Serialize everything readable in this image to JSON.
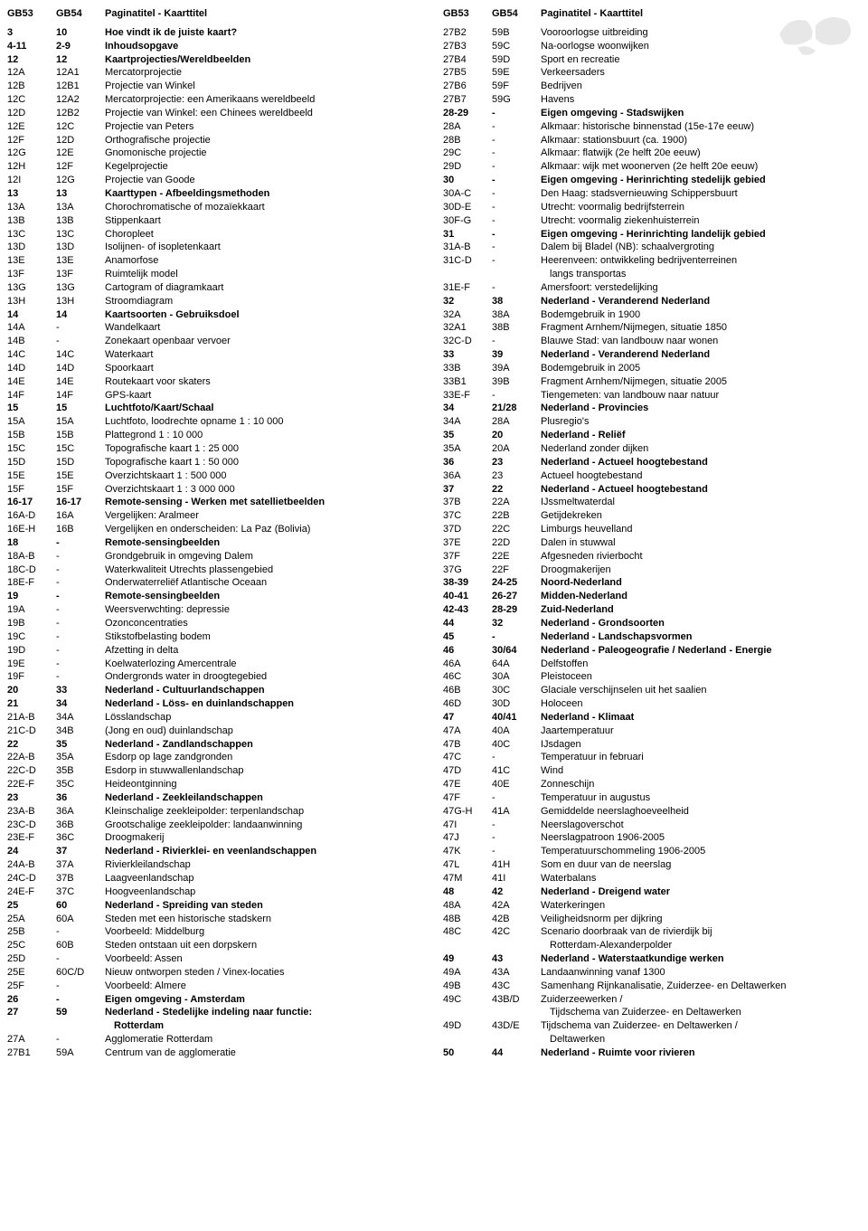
{
  "headers": {
    "c1": "GB53",
    "c2": "GB54",
    "c3": "Paginatitel - Kaarttitel"
  },
  "left": [
    {
      "c1": "3",
      "c2": "10",
      "c3": "Hoe vindt ik de juiste kaart?",
      "bold": true
    },
    {
      "c1": "4-11",
      "c2": "2-9",
      "c3": "Inhoudsopgave",
      "bold": true
    },
    {
      "c1": "12",
      "c2": "12",
      "c3": "Kaartprojecties/Wereldbeelden",
      "bold": true
    },
    {
      "c1": "12A",
      "c2": "12A1",
      "c3": "Mercatorprojectie"
    },
    {
      "c1": "12B",
      "c2": "12B1",
      "c3": "Projectie van Winkel"
    },
    {
      "c1": "12C",
      "c2": "12A2",
      "c3": "Mercatorprojectie: een Amerikaans wereldbeeld"
    },
    {
      "c1": "12D",
      "c2": "12B2",
      "c3": "Projectie van Winkel: een Chinees wereldbeeld"
    },
    {
      "c1": "12E",
      "c2": "12C",
      "c3": "Projectie van Peters"
    },
    {
      "c1": "12F",
      "c2": "12D",
      "c3": "Orthografische projectie"
    },
    {
      "c1": "12G",
      "c2": "12E",
      "c3": "Gnomonische projectie"
    },
    {
      "c1": "12H",
      "c2": "12F",
      "c3": "Kegelprojectie"
    },
    {
      "c1": "12I",
      "c2": "12G",
      "c3": "Projectie van Goode"
    },
    {
      "c1": "13",
      "c2": "13",
      "c3": "Kaarttypen - Afbeeldingsmethoden",
      "bold": true
    },
    {
      "c1": "13A",
      "c2": "13A",
      "c3": "Chorochromatische of mozaïekkaart"
    },
    {
      "c1": "13B",
      "c2": "13B",
      "c3": "Stippenkaart"
    },
    {
      "c1": "13C",
      "c2": "13C",
      "c3": "Choropleet"
    },
    {
      "c1": "13D",
      "c2": "13D",
      "c3": "Isolijnen- of isopletenkaart"
    },
    {
      "c1": "13E",
      "c2": "13E",
      "c3": "Anamorfose"
    },
    {
      "c1": "13F",
      "c2": "13F",
      "c3": "Ruimtelijk model"
    },
    {
      "c1": "13G",
      "c2": "13G",
      "c3": "Cartogram of diagramkaart"
    },
    {
      "c1": "13H",
      "c2": "13H",
      "c3": "Stroomdiagram"
    },
    {
      "c1": "14",
      "c2": "14",
      "c3": "Kaartsoorten - Gebruiksdoel",
      "bold": true
    },
    {
      "c1": "14A",
      "c2": "-",
      "c3": "Wandelkaart"
    },
    {
      "c1": "14B",
      "c2": "-",
      "c3": "Zonekaart openbaar vervoer"
    },
    {
      "c1": "14C",
      "c2": "14C",
      "c3": "Waterkaart"
    },
    {
      "c1": "14D",
      "c2": "14D",
      "c3": "Spoorkaart"
    },
    {
      "c1": "14E",
      "c2": "14E",
      "c3": "Routekaart voor skaters"
    },
    {
      "c1": "14F",
      "c2": "14F",
      "c3": "GPS-kaart"
    },
    {
      "c1": "15",
      "c2": "15",
      "c3": "Luchtfoto/Kaart/Schaal",
      "bold": true
    },
    {
      "c1": "15A",
      "c2": "15A",
      "c3": "Luchtfoto, loodrechte opname 1 : 10 000"
    },
    {
      "c1": "15B",
      "c2": "15B",
      "c3": "Plattegrond 1 : 10 000"
    },
    {
      "c1": "15C",
      "c2": "15C",
      "c3": "Topografische kaart 1 : 25 000"
    },
    {
      "c1": "15D",
      "c2": "15D",
      "c3": "Topografische kaart 1 : 50 000"
    },
    {
      "c1": "15E",
      "c2": "15E",
      "c3": "Overzichtskaart 1 : 500 000"
    },
    {
      "c1": "15F",
      "c2": "15F",
      "c3": "Overzichtskaart 1 : 3 000 000"
    },
    {
      "c1": "16-17",
      "c2": "16-17",
      "c3": "Remote-sensing - Werken met satellietbeelden",
      "bold": true
    },
    {
      "c1": "16A-D",
      "c2": "16A",
      "c3": "Vergelijken: Aralmeer"
    },
    {
      "c1": "16E-H",
      "c2": "16B",
      "c3": "Vergelijken en onderscheiden: La Paz (Bolivia)"
    },
    {
      "c1": "18",
      "c2": "-",
      "c3": "Remote-sensingbeelden",
      "bold": true
    },
    {
      "c1": "18A-B",
      "c2": "-",
      "c3": "Grondgebruik in omgeving Dalem"
    },
    {
      "c1": "18C-D",
      "c2": "-",
      "c3": "Waterkwaliteit Utrechts plassengebied"
    },
    {
      "c1": "18E-F",
      "c2": "-",
      "c3": "Onderwaterreliëf Atlantische Oceaan"
    },
    {
      "c1": "19",
      "c2": "-",
      "c3": "Remote-sensingbeelden",
      "bold": true
    },
    {
      "c1": "19A",
      "c2": "-",
      "c3": "Weersverwchting: depressie"
    },
    {
      "c1": "19B",
      "c2": "-",
      "c3": "Ozonconcentraties"
    },
    {
      "c1": "19C",
      "c2": "-",
      "c3": "Stikstofbelasting bodem"
    },
    {
      "c1": "19D",
      "c2": "-",
      "c3": "Afzetting in delta"
    },
    {
      "c1": "19E",
      "c2": "-",
      "c3": "Koelwaterlozing Amercentrale"
    },
    {
      "c1": "19F",
      "c2": "-",
      "c3": "Ondergronds water in droogtegebied"
    },
    {
      "c1": "20",
      "c2": "33",
      "c3": "Nederland - Cultuurlandschappen",
      "bold": true
    },
    {
      "c1": "21",
      "c2": "34",
      "c3": "Nederland - Löss- en duinlandschappen",
      "bold": true
    },
    {
      "c1": "21A-B",
      "c2": "34A",
      "c3": "Lösslandschap"
    },
    {
      "c1": "21C-D",
      "c2": "34B",
      "c3": "(Jong en oud) duinlandschap"
    },
    {
      "c1": "22",
      "c2": "35",
      "c3": "Nederland - Zandlandschappen",
      "bold": true
    },
    {
      "c1": "22A-B",
      "c2": "35A",
      "c3": "Esdorp op lage zandgronden"
    },
    {
      "c1": "22C-D",
      "c2": "35B",
      "c3": "Esdorp in stuwwallenlandschap"
    },
    {
      "c1": "22E-F",
      "c2": "35C",
      "c3": "Heideontginning"
    },
    {
      "c1": "23",
      "c2": "36",
      "c3": "Nederland - Zeekleilandschappen",
      "bold": true
    },
    {
      "c1": "23A-B",
      "c2": "36A",
      "c3": "Kleinschalige zeekleipolder: terpenlandschap"
    },
    {
      "c1": "23C-D",
      "c2": "36B",
      "c3": "Grootschalige zeekleipolder: landaanwinning"
    },
    {
      "c1": "23E-F",
      "c2": "36C",
      "c3": "Droogmakerij"
    },
    {
      "c1": "24",
      "c2": "37",
      "c3": "Nederland - Rivierklei- en veenlandschappen",
      "bold": true
    },
    {
      "c1": "24A-B",
      "c2": "37A",
      "c3": "Rivierkleilandschap"
    },
    {
      "c1": "24C-D",
      "c2": "37B",
      "c3": "Laagveenlandschap"
    },
    {
      "c1": "24E-F",
      "c2": "37C",
      "c3": "Hoogveenlandschap"
    },
    {
      "c1": "25",
      "c2": "60",
      "c3": "Nederland - Spreiding van steden",
      "bold": true
    },
    {
      "c1": "25A",
      "c2": "60A",
      "c3": "Steden met een historische stadskern"
    },
    {
      "c1": "25B",
      "c2": "-",
      "c3": "Voorbeeld: Middelburg"
    },
    {
      "c1": "25C",
      "c2": "60B",
      "c3": "Steden ontstaan uit een dorpskern"
    },
    {
      "c1": "25D",
      "c2": "-",
      "c3": "Voorbeeld: Assen"
    },
    {
      "c1": "25E",
      "c2": "60C/D",
      "c3": "Nieuw ontworpen steden / Vinex-locaties"
    },
    {
      "c1": "25F",
      "c2": "-",
      "c3": "Voorbeeld: Almere"
    },
    {
      "c1": "26",
      "c2": "-",
      "c3": "Eigen omgeving - Amsterdam",
      "bold": true
    },
    {
      "c1": "27",
      "c2": "59",
      "c3": "Nederland - Stedelijke indeling naar functie:",
      "bold": true
    },
    {
      "c1": "",
      "c2": "",
      "c3": "Rotterdam",
      "bold": true,
      "indent": true
    },
    {
      "c1": "27A",
      "c2": "-",
      "c3": "Agglomeratie Rotterdam"
    },
    {
      "c1": "27B1",
      "c2": "59A",
      "c3": "Centrum van de agglomeratie"
    }
  ],
  "right": [
    {
      "c1": "27B2",
      "c2": "59B",
      "c3": "Vooroorlogse uitbreiding"
    },
    {
      "c1": "27B3",
      "c2": "59C",
      "c3": "Na-oorlogse woonwijken"
    },
    {
      "c1": "27B4",
      "c2": "59D",
      "c3": "Sport en recreatie"
    },
    {
      "c1": "27B5",
      "c2": "59E",
      "c3": "Verkeersaders"
    },
    {
      "c1": "27B6",
      "c2": "59F",
      "c3": "Bedrijven"
    },
    {
      "c1": "27B7",
      "c2": "59G",
      "c3": "Havens"
    },
    {
      "c1": "28-29",
      "c2": "-",
      "c3": "Eigen omgeving - Stadswijken",
      "bold": true
    },
    {
      "c1": "28A",
      "c2": "-",
      "c3": "Alkmaar: historische binnenstad (15e-17e eeuw)"
    },
    {
      "c1": "28B",
      "c2": "-",
      "c3": "Alkmaar: stationsbuurt (ca. 1900)"
    },
    {
      "c1": "29C",
      "c2": "-",
      "c3": "Alkmaar: flatwijk (2e helft 20e eeuw)"
    },
    {
      "c1": "29D",
      "c2": "-",
      "c3": "Alkmaar: wijk met woonerven (2e helft 20e eeuw)"
    },
    {
      "c1": "30",
      "c2": "-",
      "c3": "Eigen omgeving - Herinrichting stedelijk gebied",
      "bold": true
    },
    {
      "c1": "30A-C",
      "c2": "-",
      "c3": "Den Haag: stadsvernieuwing Schippersbuurt"
    },
    {
      "c1": "30D-E",
      "c2": "-",
      "c3": "Utrecht: voormalig bedrijfsterrein"
    },
    {
      "c1": "30F-G",
      "c2": "-",
      "c3": "Utrecht: voormalig ziekenhuisterrein"
    },
    {
      "c1": "31",
      "c2": "-",
      "c3": "Eigen omgeving - Herinrichting landelijk gebied",
      "bold": true
    },
    {
      "c1": "31A-B",
      "c2": "-",
      "c3": "Dalem bij Bladel (NB): schaalvergroting"
    },
    {
      "c1": "31C-D",
      "c2": "-",
      "c3": "Heerenveen: ontwikkeling bedrijventerreinen"
    },
    {
      "c1": "",
      "c2": "",
      "c3": "langs transportas",
      "indent": true
    },
    {
      "c1": "31E-F",
      "c2": "-",
      "c3": "Amersfoort: verstedelijking"
    },
    {
      "c1": "32",
      "c2": "38",
      "c3": "Nederland - Veranderend Nederland",
      "bold": true
    },
    {
      "c1": "32A",
      "c2": "38A",
      "c3": "Bodemgebruik in 1900"
    },
    {
      "c1": "32A1",
      "c2": "38B",
      "c3": "Fragment Arnhem/Nijmegen, situatie 1850"
    },
    {
      "c1": "32C-D",
      "c2": "-",
      "c3": "Blauwe Stad: van landbouw naar wonen"
    },
    {
      "c1": "33",
      "c2": "39",
      "c3": "Nederland - Veranderend Nederland",
      "bold": true
    },
    {
      "c1": "33B",
      "c2": "39A",
      "c3": "Bodemgebruik in 2005"
    },
    {
      "c1": "33B1",
      "c2": "39B",
      "c3": "Fragment Arnhem/Nijmegen, situatie 2005"
    },
    {
      "c1": "33E-F",
      "c2": "-",
      "c3": "Tiengemeten: van landbouw naar natuur"
    },
    {
      "c1": "34",
      "c2": "21/28",
      "c3": "Nederland - Provincies",
      "bold": true
    },
    {
      "c1": "34A",
      "c2": "28A",
      "c3": "Plusregio's"
    },
    {
      "c1": "35",
      "c2": "20",
      "c3": "Nederland - Reliëf",
      "bold": true
    },
    {
      "c1": "35A",
      "c2": "20A",
      "c3": "Nederland zonder dijken"
    },
    {
      "c1": "36",
      "c2": "23",
      "c3": "Nederland - Actueel hoogtebestand",
      "bold": true
    },
    {
      "c1": "36A",
      "c2": "23",
      "c3": "Actueel hoogtebestand"
    },
    {
      "c1": "37",
      "c2": "22",
      "c3": "Nederland - Actueel hoogtebestand",
      "bold": true
    },
    {
      "c1": "37B",
      "c2": "22A",
      "c3": "IJssmeltwaterdal"
    },
    {
      "c1": "37C",
      "c2": "22B",
      "c3": "Getijdekreken"
    },
    {
      "c1": "37D",
      "c2": "22C",
      "c3": "Limburgs heuvelland"
    },
    {
      "c1": "37E",
      "c2": "22D",
      "c3": "Dalen in stuwwal"
    },
    {
      "c1": "37F",
      "c2": "22E",
      "c3": "Afgesneden rivierbocht"
    },
    {
      "c1": "37G",
      "c2": "22F",
      "c3": "Droogmakerijen"
    },
    {
      "c1": "38-39",
      "c2": "24-25",
      "c3": "Noord-Nederland",
      "bold": true
    },
    {
      "c1": "40-41",
      "c2": "26-27",
      "c3": "Midden-Nederland",
      "bold": true
    },
    {
      "c1": "42-43",
      "c2": "28-29",
      "c3": "Zuid-Nederland",
      "bold": true
    },
    {
      "c1": "44",
      "c2": "32",
      "c3": "Nederland - Grondsoorten",
      "bold": true
    },
    {
      "c1": "45",
      "c2": "-",
      "c3": "Nederland - Landschapsvormen",
      "bold": true
    },
    {
      "c1": "46",
      "c2": "30/64",
      "c3": "Nederland - Paleogeografie / Nederland - Energie",
      "bold": true
    },
    {
      "c1": "46A",
      "c2": "64A",
      "c3": "Delfstoffen"
    },
    {
      "c1": "46C",
      "c2": "30A",
      "c3": "Pleistoceen"
    },
    {
      "c1": "46B",
      "c2": "30C",
      "c3": "Glaciale verschijnselen uit het saalien"
    },
    {
      "c1": "46D",
      "c2": "30D",
      "c3": "Holoceen"
    },
    {
      "c1": "47",
      "c2": "40/41",
      "c3": "Nederland - Klimaat",
      "bold": true
    },
    {
      "c1": "47A",
      "c2": "40A",
      "c3": "Jaartemperatuur"
    },
    {
      "c1": "47B",
      "c2": "40C",
      "c3": "IJsdagen"
    },
    {
      "c1": "47C",
      "c2": "-",
      "c3": "Temperatuur in februari"
    },
    {
      "c1": "47D",
      "c2": "41C",
      "c3": "Wind"
    },
    {
      "c1": "47E",
      "c2": "40E",
      "c3": "Zonneschijn"
    },
    {
      "c1": "47F",
      "c2": "-",
      "c3": "Temperatuur in augustus"
    },
    {
      "c1": "47G-H",
      "c2": "41A",
      "c3": "Gemiddelde neerslaghoeveelheid"
    },
    {
      "c1": "47I",
      "c2": "-",
      "c3": "Neerslagoverschot"
    },
    {
      "c1": "47J",
      "c2": "-",
      "c3": "Neerslagpatroon 1906-2005"
    },
    {
      "c1": "47K",
      "c2": "-",
      "c3": "Temperatuurschommeling 1906-2005"
    },
    {
      "c1": "47L",
      "c2": "41H",
      "c3": "Som en duur van de neerslag"
    },
    {
      "c1": "47M",
      "c2": "41I",
      "c3": "Waterbalans"
    },
    {
      "c1": "48",
      "c2": "42",
      "c3": "Nederland - Dreigend water",
      "bold": true
    },
    {
      "c1": "48A",
      "c2": "42A",
      "c3": "Waterkeringen"
    },
    {
      "c1": "48B",
      "c2": "42B",
      "c3": "Veiligheidsnorm per dijkring"
    },
    {
      "c1": "48C",
      "c2": "42C",
      "c3": "Scenario doorbraak van de rivierdijk bij"
    },
    {
      "c1": "",
      "c2": "",
      "c3": "Rotterdam-Alexanderpolder",
      "indent": true
    },
    {
      "c1": "49",
      "c2": "43",
      "c3": "Nederland - Waterstaatkundige werken",
      "bold": true
    },
    {
      "c1": "49A",
      "c2": "43A",
      "c3": "Landaanwinning vanaf 1300"
    },
    {
      "c1": "49B",
      "c2": "43C",
      "c3": "Samenhang Rijnkanalisatie, Zuiderzee- en Deltawerken"
    },
    {
      "c1": "49C",
      "c2": "43B/D",
      "c3": "Zuiderzeewerken /"
    },
    {
      "c1": "",
      "c2": "",
      "c3": "Tijdschema van Zuiderzee- en Deltawerken",
      "indent": true
    },
    {
      "c1": "49D",
      "c2": "43D/E",
      "c3": "Tijdschema van Zuiderzee- en Deltawerken /"
    },
    {
      "c1": "",
      "c2": "",
      "c3": "Deltawerken",
      "indent": true
    },
    {
      "c1": "50",
      "c2": "44",
      "c3": "Nederland - Ruimte voor rivieren",
      "bold": true
    }
  ]
}
